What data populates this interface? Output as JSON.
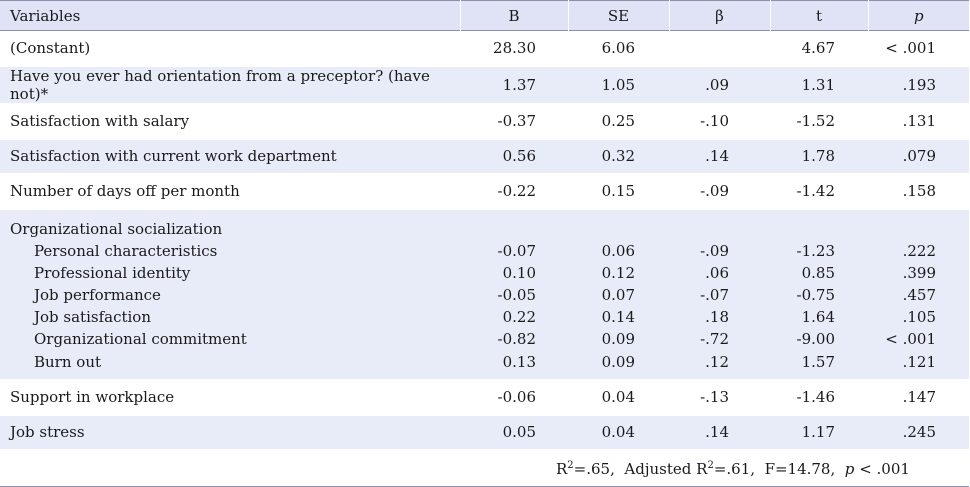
{
  "headers": [
    "Variables",
    "B",
    "SE",
    "β",
    "t",
    "p"
  ],
  "rows": [
    {
      "label": "(Constant)",
      "b": "28.30",
      "se": "6.06",
      "beta": "",
      "t": "4.67",
      "p": "< .001"
    },
    {
      "label": "Have you ever had orientation from a preceptor? (have not)*",
      "b": "1.37",
      "se": "1.05",
      "beta": ".09",
      "t": "1.31",
      "p": ".193"
    },
    {
      "label": "Satisfaction with salary",
      "b": "-0.37",
      "se": "0.25",
      "beta": "-.10",
      "t": "-1.52",
      "p": ".131"
    },
    {
      "label": "Satisfaction with current work department",
      "b": "0.56",
      "se": "0.32",
      "beta": ".14",
      "t": "1.78",
      "p": ".079"
    },
    {
      "label": "Number of days off per month",
      "b": "-0.22",
      "se": "0.15",
      "beta": "-.09",
      "t": "-1.42",
      "p": ".158"
    }
  ],
  "group": {
    "label": "Organizational socialization",
    "items": [
      {
        "label": "Personal characteristics",
        "b": "-0.07",
        "se": "0.06",
        "beta": "-.09",
        "t": "-1.23",
        "p": ".222"
      },
      {
        "label": "Professional identity",
        "b": "0.10",
        "se": "0.12",
        "beta": ".06",
        "t": "0.85",
        "p": ".399"
      },
      {
        "label": "Job performance",
        "b": "-0.05",
        "se": "0.07",
        "beta": "-.07",
        "t": "-0.75",
        "p": ".457"
      },
      {
        "label": "Job satisfaction",
        "b": "0.22",
        "se": "0.14",
        "beta": ".18",
        "t": "1.64",
        "p": ".105"
      },
      {
        "label": "Organizational commitment",
        "b": "-0.82",
        "se": "0.09",
        "beta": "-.72",
        "t": "-9.00",
        "p": "< .001"
      },
      {
        "label": "Burn out",
        "b": "0.13",
        "se": "0.09",
        "beta": ".12",
        "t": "1.57",
        "p": ".121"
      }
    ]
  },
  "rows_after": [
    {
      "label": "Support in workplace",
      "b": "-0.06",
      "se": "0.04",
      "beta": "-.13",
      "t": "-1.46",
      "p": ".147"
    },
    {
      "label": "Job stress",
      "b": "0.05",
      "se": "0.04",
      "beta": ".14",
      "t": "1.17",
      "p": ".245"
    }
  ],
  "footer": {
    "r2_label": "R",
    "r2_sup": "2",
    "r2_value": "=.65,",
    "adj_label": "Adjusted R",
    "adj_sup": "2",
    "adj_value": "=.61,",
    "f_stat": "F=14.78,",
    "p_label": "p",
    "p_value": "< .001"
  }
}
